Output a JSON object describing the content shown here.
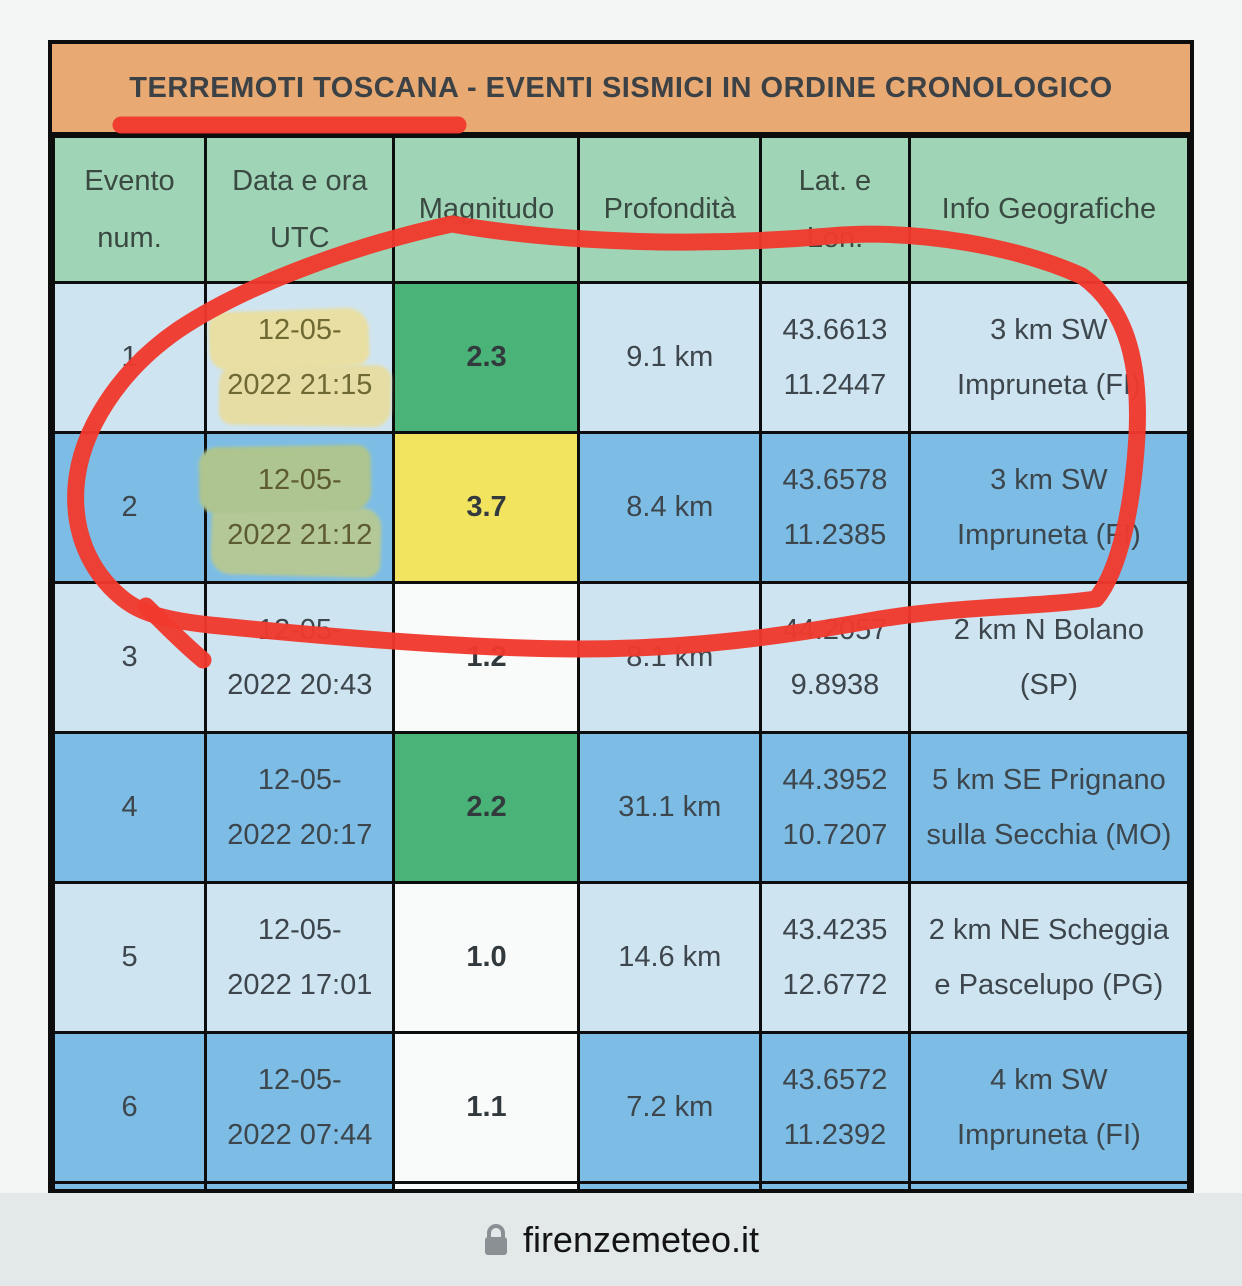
{
  "table": {
    "title": "TERREMOTI TOSCANA - EVENTI SISMICI IN ORDINE CRONOLOGICO",
    "headers": [
      {
        "lines": [
          "Evento",
          "num."
        ]
      },
      {
        "lines": [
          "Data e ora",
          "UTC"
        ]
      },
      {
        "lines": [
          "Magnitudo"
        ]
      },
      {
        "lines": [
          "Profondità"
        ]
      },
      {
        "lines": [
          "Lat. e",
          "Lon."
        ]
      },
      {
        "lines": [
          "Info Geografiche"
        ]
      }
    ],
    "rows": [
      {
        "num": "1",
        "date": [
          "12-05-",
          "2022 21:15"
        ],
        "magnitude": "2.3",
        "mag_color": "green",
        "depth": "9.1 km",
        "lat": "43.6613",
        "lon": "11.2447",
        "info": [
          "3 km SW",
          "Impruneta (FI)"
        ],
        "shade": "light",
        "highlight": "light"
      },
      {
        "num": "2",
        "date": [
          "12-05-",
          "2022 21:12"
        ],
        "magnitude": "3.7",
        "mag_color": "yellow",
        "depth": "8.4 km",
        "lat": "43.6578",
        "lon": "11.2385",
        "info": [
          "3 km SW",
          "Impruneta (FI)"
        ],
        "shade": "dark",
        "highlight": "dark"
      },
      {
        "num": "3",
        "date": [
          "12-05-",
          "2022 20:43"
        ],
        "magnitude": "1.2",
        "mag_color": "white",
        "depth": "8.1 km",
        "lat": "44.2057",
        "lon": "9.8938",
        "info": [
          "2 km N Bolano",
          "(SP)"
        ],
        "shade": "light"
      },
      {
        "num": "4",
        "date": [
          "12-05-",
          "2022 20:17"
        ],
        "magnitude": "2.2",
        "mag_color": "green",
        "depth": "31.1 km",
        "lat": "44.3952",
        "lon": "10.7207",
        "info": [
          "5 km SE Prignano",
          "sulla Secchia (MO)"
        ],
        "shade": "dark"
      },
      {
        "num": "5",
        "date": [
          "12-05-",
          "2022 17:01"
        ],
        "magnitude": "1.0",
        "mag_color": "white",
        "depth": "14.6 km",
        "lat": "43.4235",
        "lon": "12.6772",
        "info": [
          "2 km NE Scheggia",
          "e Pascelupo (PG)"
        ],
        "shade": "light"
      },
      {
        "num": "6",
        "date": [
          "12-05-",
          "2022 07:44"
        ],
        "magnitude": "1.1",
        "mag_color": "white",
        "depth": "7.2 km",
        "lat": "43.6572",
        "lon": "11.2392",
        "info": [
          "4 km SW",
          "Impruneta (FI)"
        ],
        "shade": "dark"
      },
      {
        "partial": true,
        "mag_color": "white",
        "shade": "dark"
      }
    ]
  },
  "browser_bar": {
    "url": "firenzemeteo.it"
  },
  "colors": {
    "page_background": "#f4f5f5",
    "title_background": "#e8a973",
    "header_background": "#9fd4b6",
    "row_light": "#cfe4f1",
    "row_dark": "#7dbde5",
    "magnitude_green": "#4ab378",
    "magnitude_yellow": "#f2e45f",
    "magnitude_white": "#f9fafa",
    "annotation_red": "#f0392e",
    "highlighter_yellow_on_light": "#e9dfa2",
    "highlighter_yellow_on_dark": "#b0c693",
    "url_bar_background": "#e3e8e9"
  }
}
